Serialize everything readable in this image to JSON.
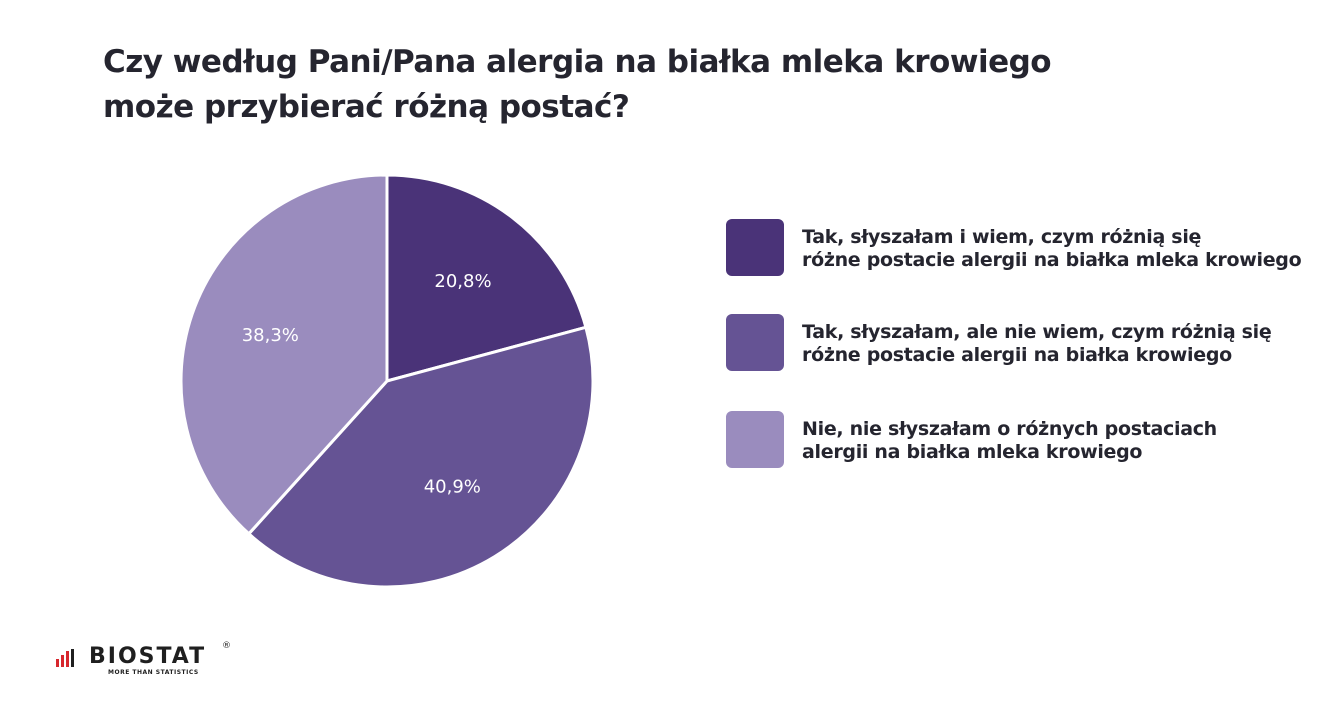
{
  "chart_data": {
    "type": "pie",
    "title_lines": [
      "Czy według Pani/Pana alergia na białka mleka krowiego",
      "może przybierać różną postać?"
    ],
    "start_angle_deg": 0,
    "direction": "clockwise",
    "slices": [
      {
        "value": 20.8,
        "label": "20,8%",
        "color": "#4a3378",
        "legend_lines": [
          "Tak, słyszałam i wiem, czym różnią się",
          "różne postacie alergii na białka mleka krowiego"
        ]
      },
      {
        "value": 40.9,
        "label": "40,9%",
        "color": "#655394",
        "legend_lines": [
          "Tak, słyszałam, ale nie wiem, czym różnią się",
          "różne postacie alergii na białka krowiego"
        ]
      },
      {
        "value": 38.3,
        "label": "38,3%",
        "color": "#9a8cbe",
        "legend_lines": [
          "Nie, nie słyszałam o różnych postaciach",
          "alergii na białka mleka krowiego"
        ]
      }
    ],
    "legend_position": "right"
  },
  "logo": {
    "name": "BIOSTAT",
    "tagline": "MORE THAN STATISTICS",
    "registered_mark": "®",
    "accent_color": "#d7262d"
  }
}
